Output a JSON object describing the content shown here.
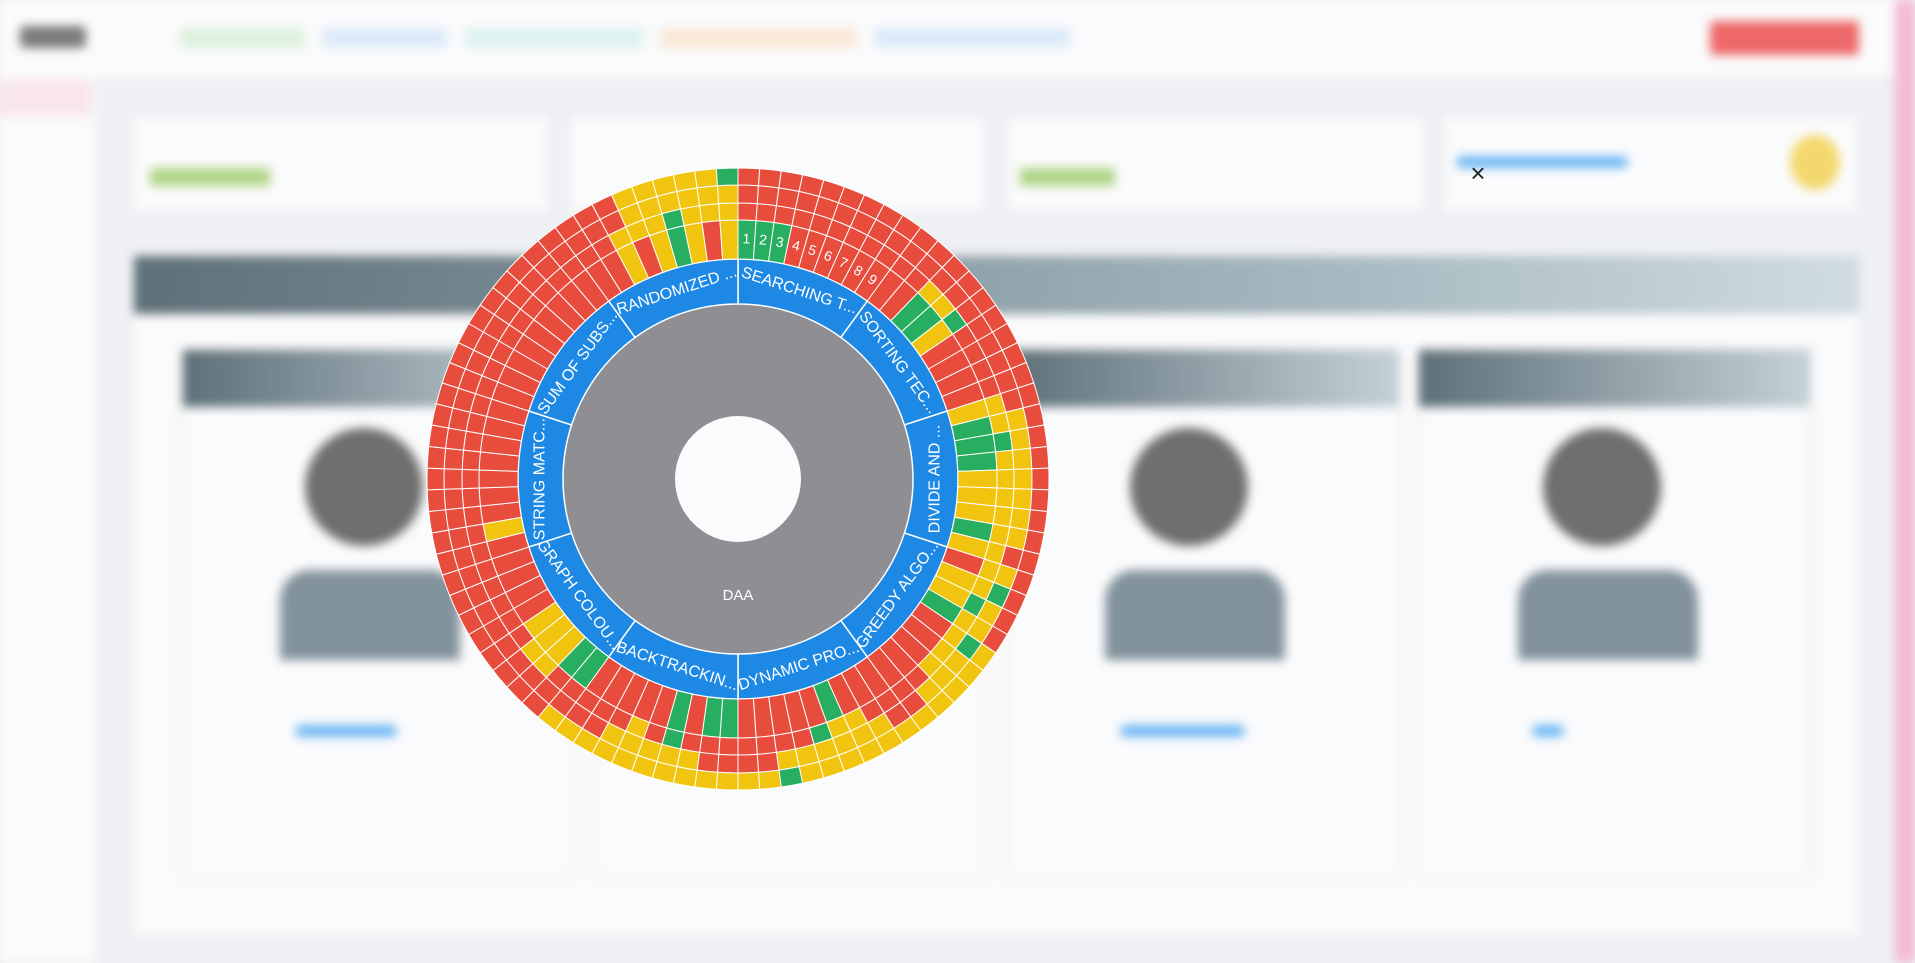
{
  "chart_data": {
    "type": "sunburst",
    "center_label": "DAA",
    "center_color": "#8e8e93",
    "topic_color": "#1e88e5",
    "status_colors": {
      "r": "#e74c3c",
      "y": "#f1c40f",
      "g": "#27ae60"
    },
    "topics": [
      {
        "name": "SEARCHING T...",
        "questions": [
          1,
          2,
          3,
          4,
          5,
          6,
          7,
          8,
          9
        ],
        "cells": [
          "grrr",
          "grrr",
          "grrr",
          "rrrr",
          "rrrr",
          "rrrr",
          "rrrr",
          "rrrr",
          "rrrr"
        ]
      },
      {
        "name": "SORTING TEC...",
        "cells": [
          "rrrr",
          "rrrr",
          "gyrr",
          "gyrr",
          "ygrr",
          "rrrr",
          "rrrr",
          "rrrr",
          "rrrr"
        ]
      },
      {
        "name": "DIVIDE AND ...",
        "cells": [
          "yyrr",
          "gyyr",
          "ggyr",
          "gyyr",
          "yyyr",
          "yyyr",
          "yyyr",
          "gyyr",
          "yyrr"
        ]
      },
      {
        "name": "GREEDY ALGO...",
        "cells": [
          "ryyr",
          "yygr",
          "ygyr",
          "gyyr",
          "rygy",
          "ryyy",
          "ryyy",
          "rryy",
          "rrry"
        ]
      },
      {
        "name": "DYNAMIC PRO...",
        "cells": [
          "rrry",
          "rryy",
          "ryyy",
          "gyyy",
          "rgyy",
          "rryy",
          "rryg",
          "rrry",
          "rrry"
        ]
      },
      {
        "name": "BACKTRACKIN...",
        "cells": [
          "grry",
          "grry",
          "rryy",
          "ggyy",
          "rryy",
          "ryyy",
          "rryy",
          "rrry",
          "rrry"
        ]
      },
      {
        "name": "GRAPH COLOU...",
        "cells": [
          "grry",
          "grrr",
          "yyrr",
          "yyrr",
          "yrrr",
          "rrrr",
          "rrrr",
          "rrrr",
          "rrrr"
        ]
      },
      {
        "name": "STRING MATC...",
        "cells": [
          "rrrr",
          "yrrr",
          "rrrr",
          "rrrr",
          "rrrr",
          "rrrr",
          "rrrr",
          "rrrr",
          "rrrr"
        ]
      },
      {
        "name": "SUM OF SUBS...",
        "cells": [
          "rrrr",
          "rrrr",
          "rrrr",
          "rrrr",
          "rrrr",
          "rrrr",
          "rrrr",
          "rrrr",
          "rrrr"
        ]
      },
      {
        "name": "RANDOMIZED ...",
        "cells": [
          "rrrr",
          "rrrr",
          "yyrr",
          "ryyy",
          "yyyy",
          "ggyy",
          "yyyy",
          "ryyy",
          "yyyg"
        ]
      }
    ]
  }
}
